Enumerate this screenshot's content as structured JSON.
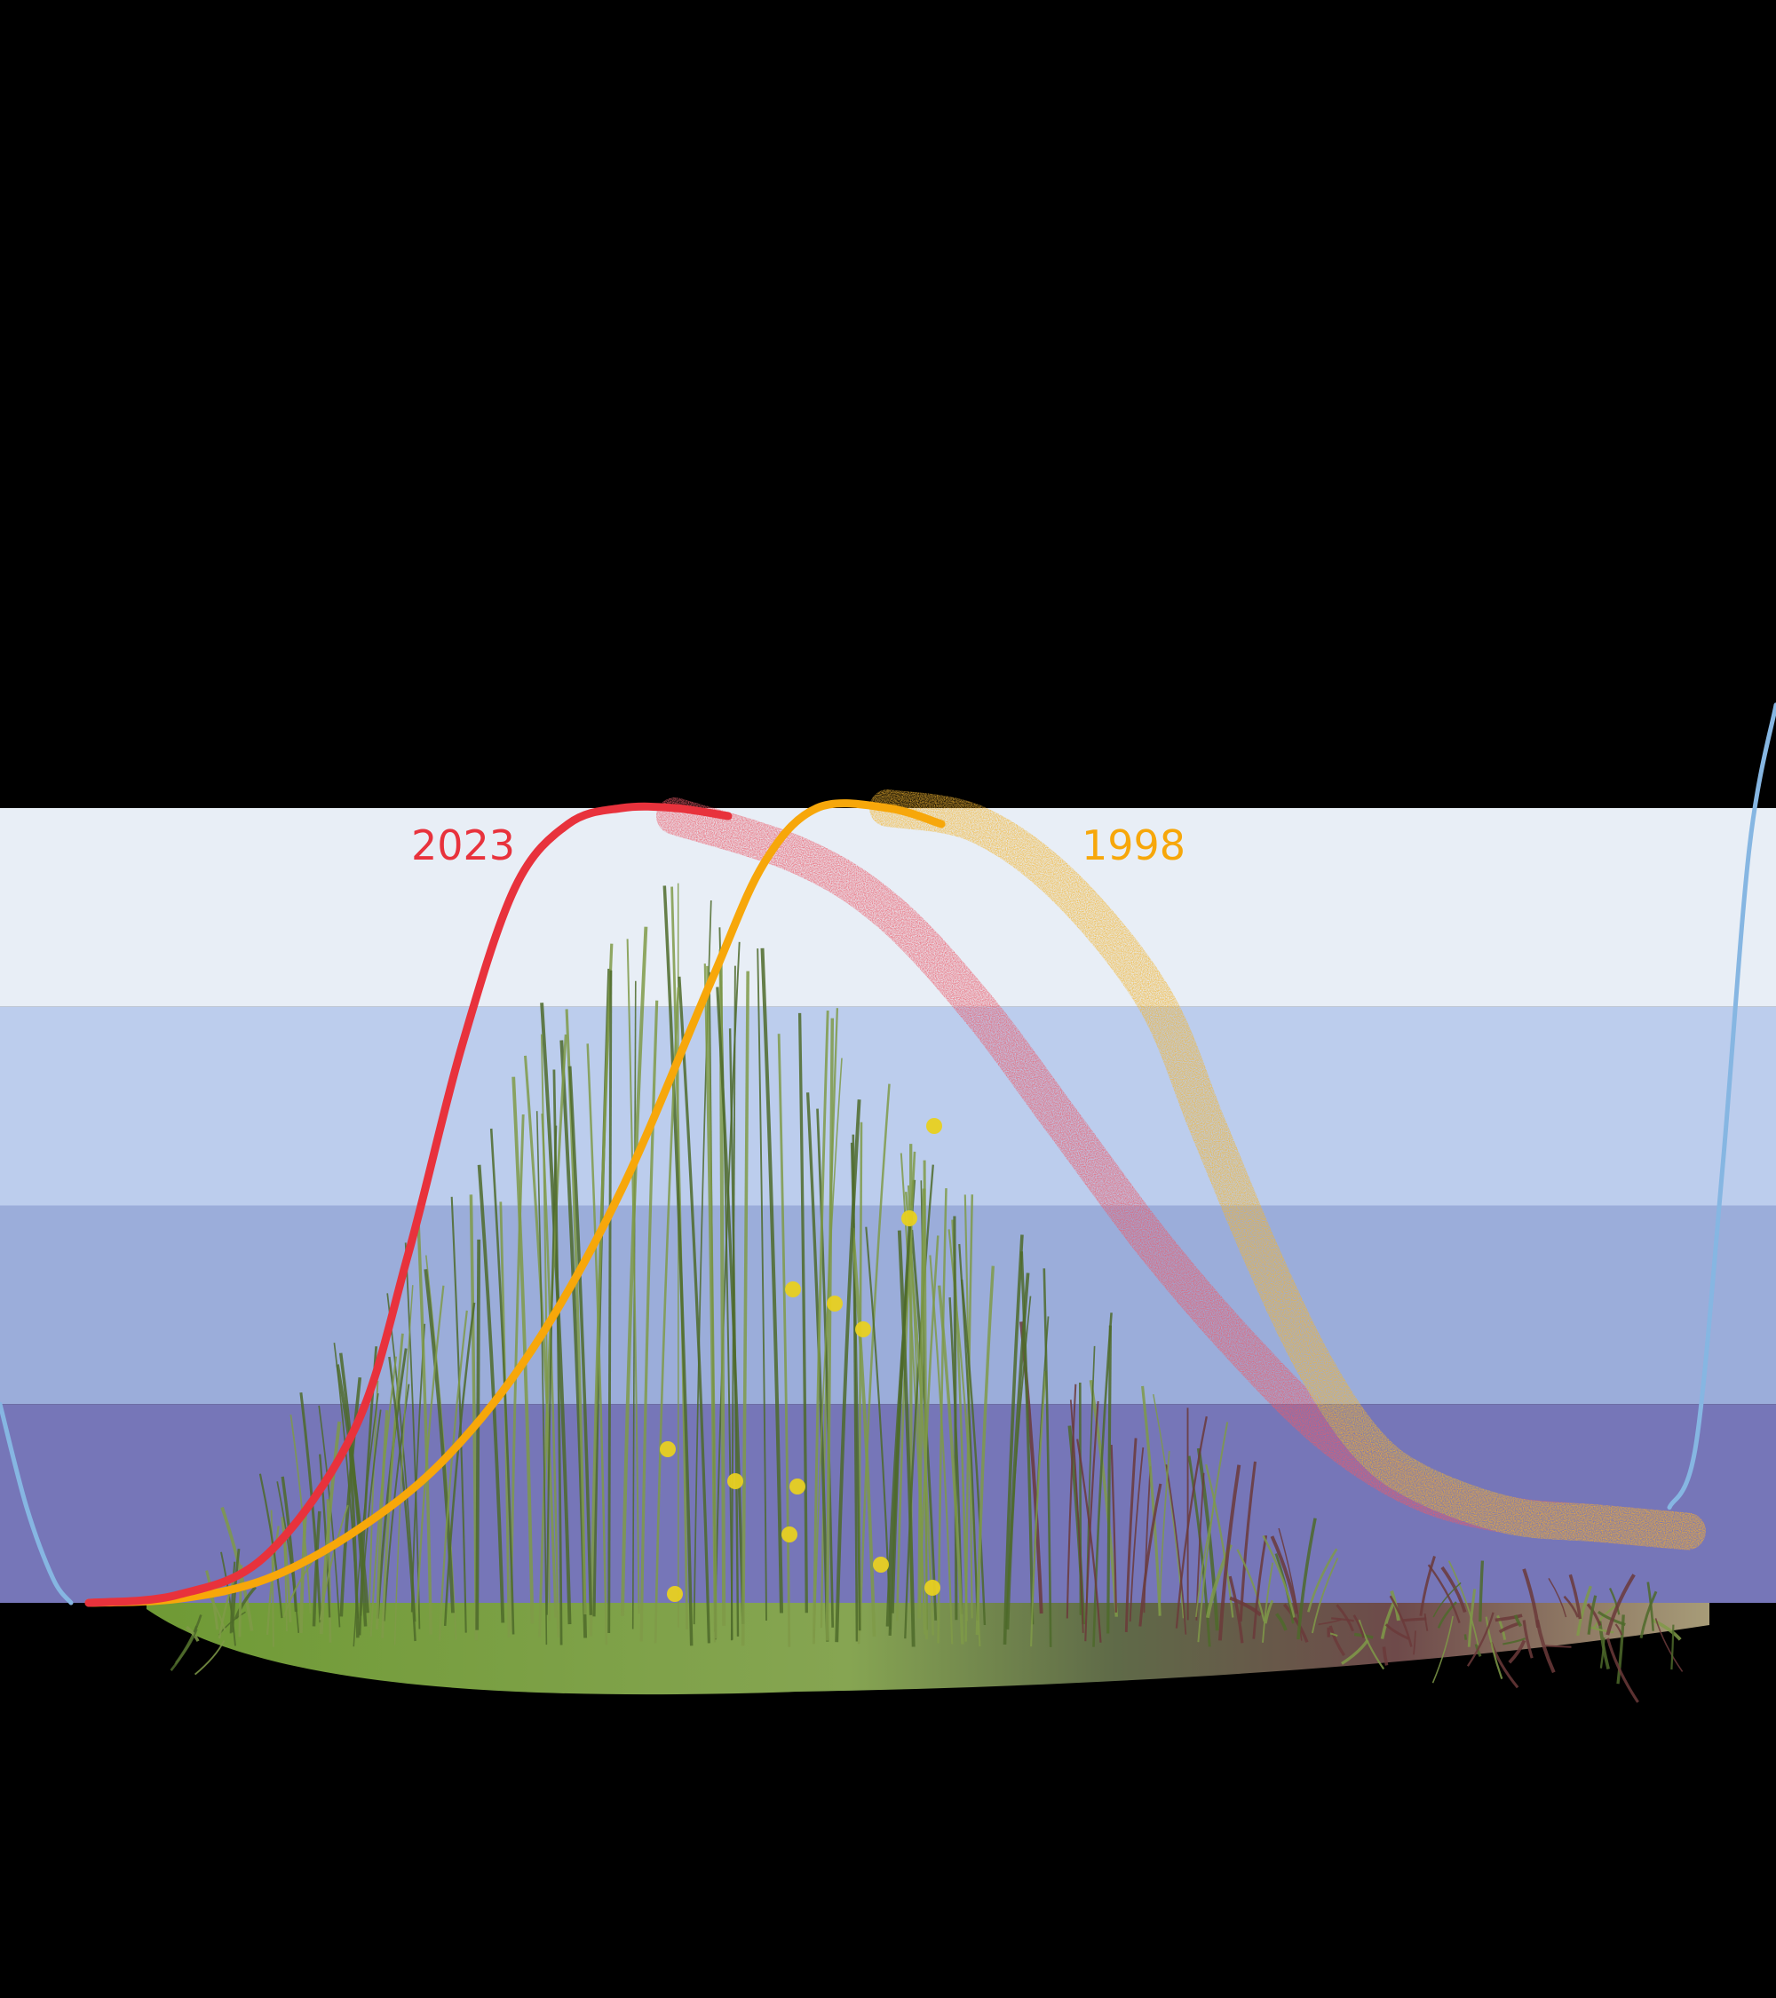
{
  "colors": {
    "background": "#000000",
    "band_colors": [
      "#e8eef6",
      "#bccded",
      "#9badda",
      "#7676b8"
    ],
    "red_series": "#e8323c",
    "orange_series": "#f7a70a",
    "red_spread": "#ec5a68",
    "orange_spread": "#f2b430",
    "blue_curve": "#86b6e2",
    "vegetation_green": "#7f9a48",
    "vegetation_dark": "#4d6a2a",
    "vegetation_red": "#6b3a3a",
    "flower_yellow": "#e8d020"
  },
  "chart_data": {
    "type": "line",
    "xlim": [
      0,
      100
    ],
    "ylim": [
      0,
      100
    ],
    "bands": [
      {
        "from": 75,
        "to": 100
      },
      {
        "from": 50,
        "to": 75
      },
      {
        "from": 25,
        "to": 50
      },
      {
        "from": 0,
        "to": 25
      }
    ],
    "series": [
      {
        "name": "2023",
        "color": "#e8323c",
        "x": [
          5,
          10,
          15,
          20,
          23,
          26,
          29,
          32,
          35,
          38,
          41
        ],
        "y": [
          0,
          1,
          6,
          22,
          44,
          70,
          90,
          98,
          100,
          100,
          99
        ]
      },
      {
        "name": "1998",
        "color": "#f7a70a",
        "x": [
          5,
          10,
          15,
          20,
          25,
          30,
          35,
          40,
          43,
          46,
          50,
          53
        ],
        "y": [
          0,
          0.5,
          3,
          9,
          18,
          32,
          52,
          78,
          93,
          100,
          100,
          98
        ]
      }
    ],
    "spread_bands": [
      {
        "color": "#ec5a68",
        "x": [
          38,
          45,
          50,
          55,
          60,
          65,
          70,
          75,
          80,
          85,
          90,
          95
        ],
        "y": [
          99,
          94,
          87,
          75,
          60,
          45,
          32,
          21,
          14,
          11,
          10,
          9
        ]
      },
      {
        "color": "#f2b430",
        "x": [
          50,
          55,
          60,
          65,
          68,
          71,
          74,
          77,
          80,
          85,
          90,
          95
        ],
        "y": [
          100,
          98,
          90,
          76,
          60,
          44,
          30,
          20,
          15,
          11,
          10,
          9
        ]
      }
    ],
    "boundary_curve": {
      "color": "#86b6e2",
      "left": {
        "x": [
          0,
          1.5,
          3,
          4
        ],
        "y": [
          25,
          12,
          3,
          0
        ]
      },
      "right": {
        "x": [
          94,
          95.5,
          97,
          98.5,
          100
        ],
        "y": [
          12,
          20,
          55,
          95,
          113
        ]
      }
    }
  }
}
